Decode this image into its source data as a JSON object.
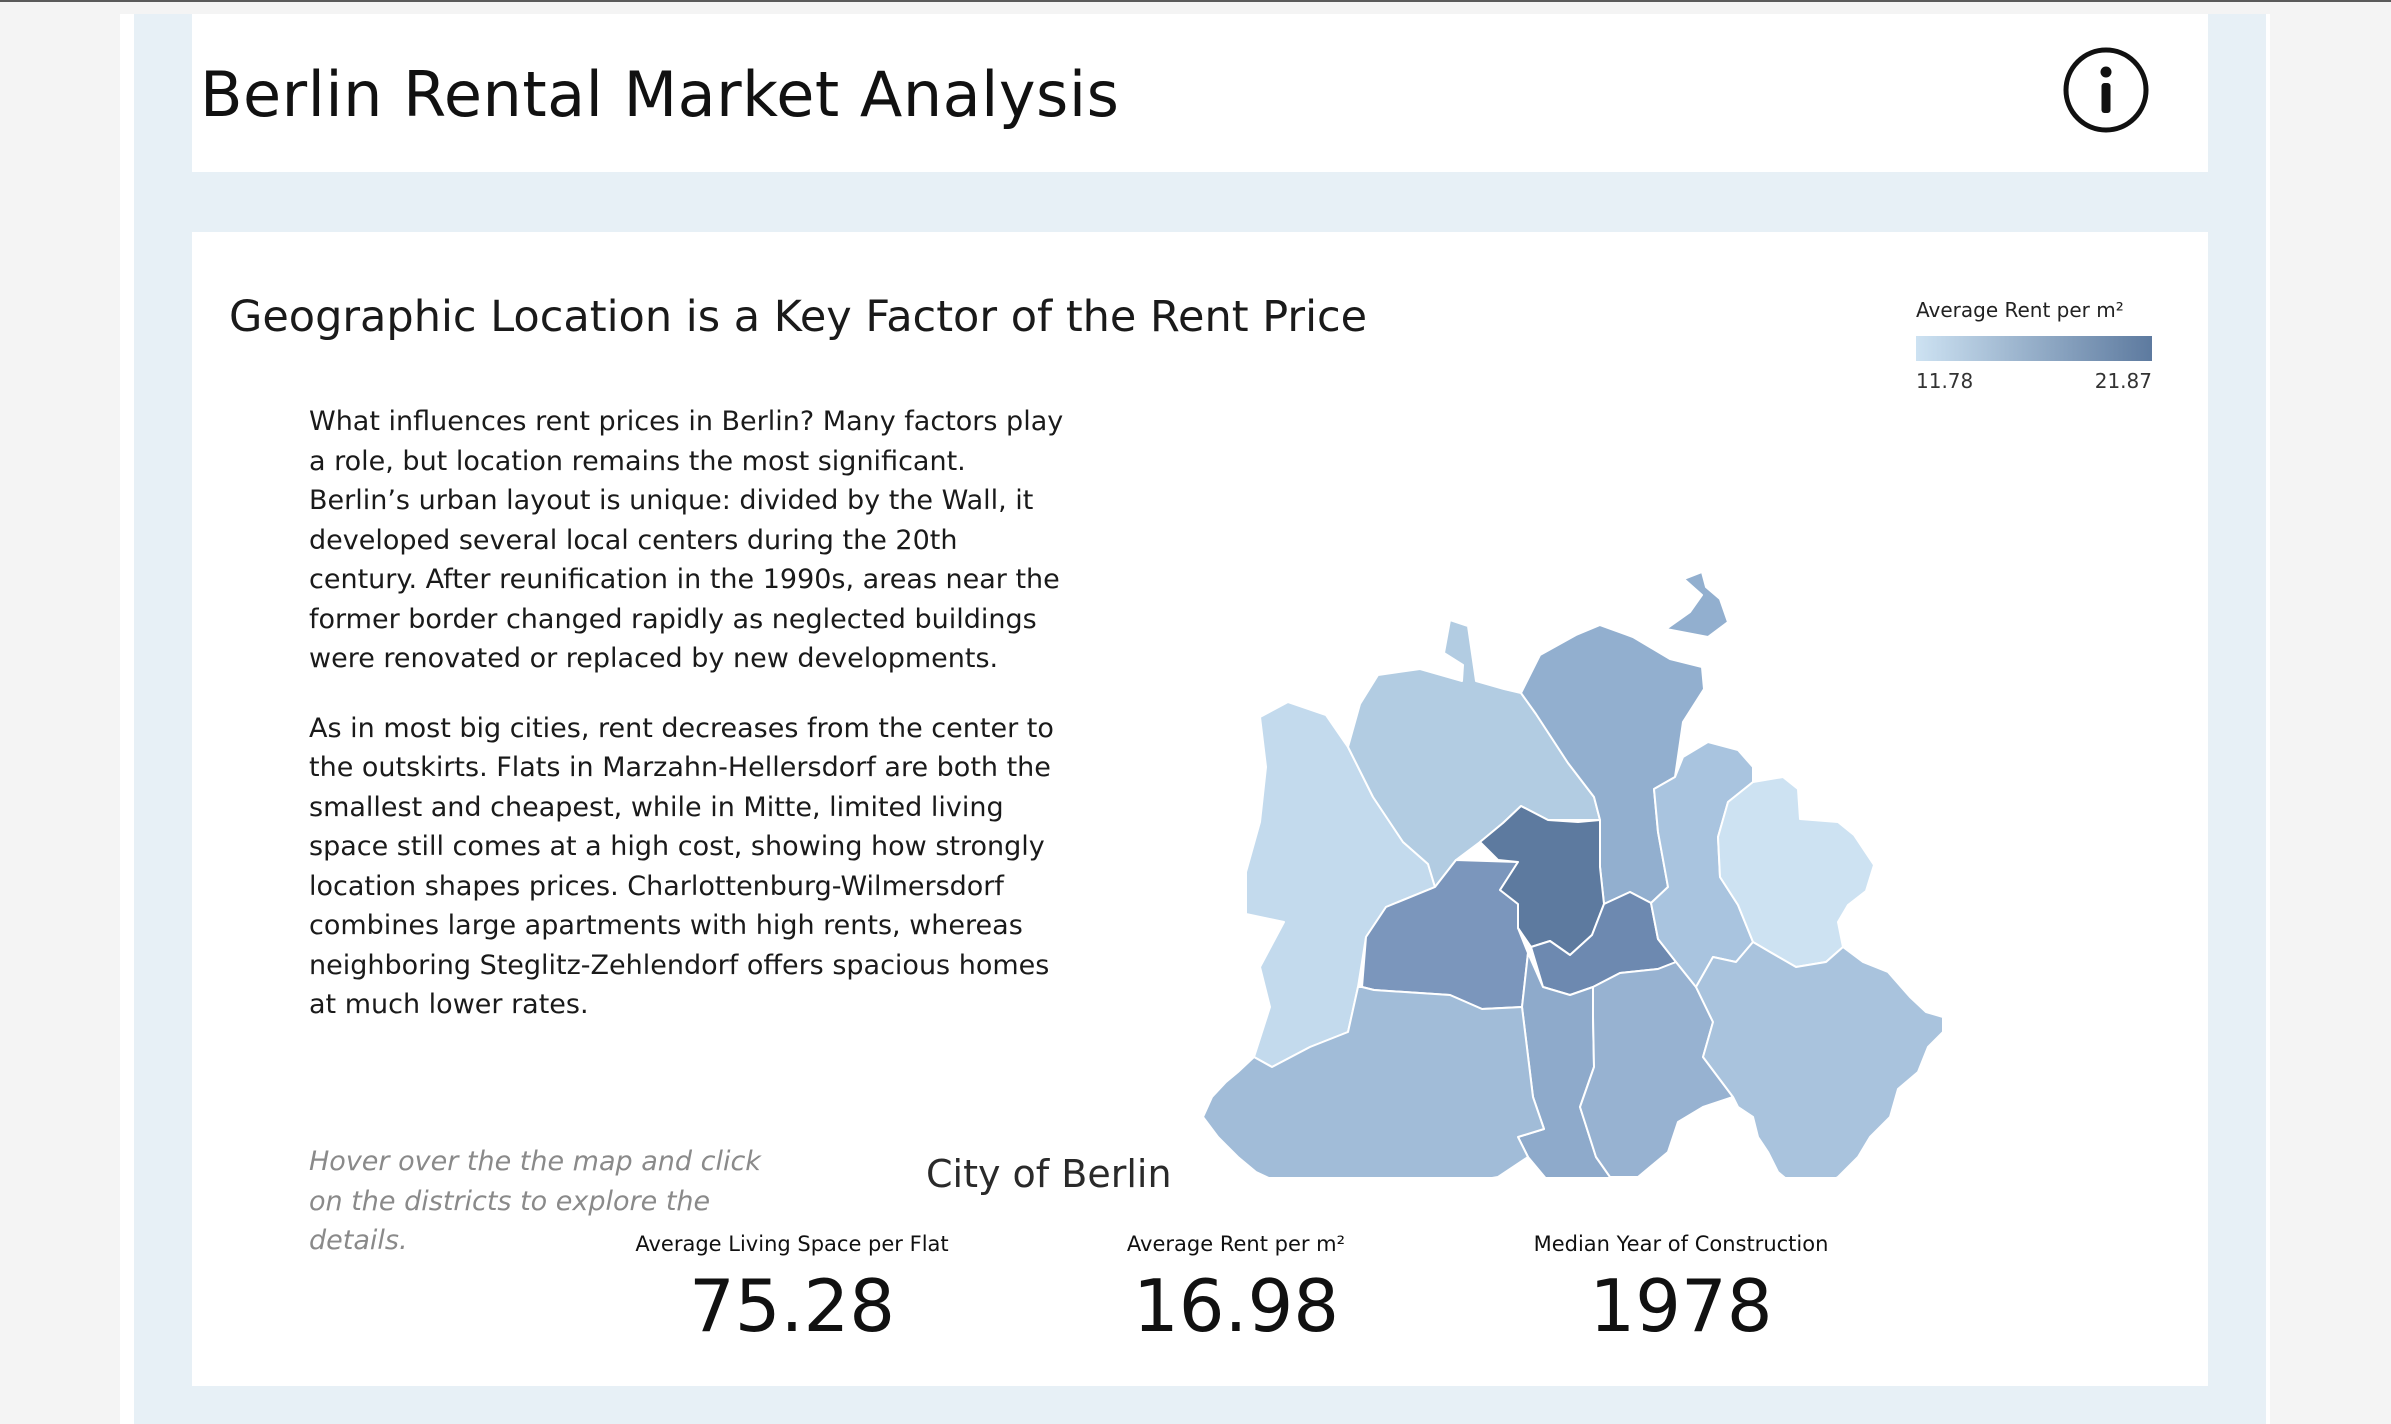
{
  "header": {
    "title": "Berlin Rental Market Analysis",
    "info_icon": "info-circle-icon"
  },
  "section": {
    "title": "Geographic Location is a Key Factor of the Rent Price",
    "paragraphs": [
      "What influences rent prices in Berlin? Many factors play a role, but location remains the most significant. Berlin’s urban layout is unique: divided by the Wall, it developed several local centers during the 20th century. After reunification in the 1990s, areas near the former border changed rapidly as neglected buildings were renovated or replaced by new developments.",
      "As in most big cities, rent decreases from the center to the outskirts. Flats in Marzahn-Hellersdorf are both the smallest and cheapest, while in Mitte, limited living space still comes at a high cost, showing how strongly location shapes prices. Charlottenburg-Wilmersdorf combines large apartments with high rents, whereas neighboring Steglitz-Zehlendorf offers spacious homes at much lower rates."
    ],
    "hint": "Hover over the the map and click on the districts to explore the details."
  },
  "legend": {
    "title": "Average Rent per m²",
    "min": "11.78",
    "max": "21.87",
    "color_min": "#cde2f2",
    "color_max": "#5d7a9f"
  },
  "map": {
    "colors": {
      "reinickendorf": "#b2cce2",
      "pankow": "#92afcf",
      "spandau": "#c3daed",
      "charlottenburg_wilmersdorf": "#7b96bc",
      "mitte": "#5d7a9f",
      "friedrichshain_kreuzberg": "#6d89b0",
      "tempelhof_schoeneberg": "#8eaacb",
      "neukoelln": "#97b2d1",
      "steglitz_zehlendorf": "#a1bcd8",
      "lichtenberg": "#a9c4df",
      "marzahn_hellersdorf": "#cde2f2",
      "treptow_koepenick": "#a9c3dd"
    }
  },
  "summary": {
    "region": "City of Berlin",
    "kpis": [
      {
        "label": "Average Living Space per Flat",
        "value": "75.28"
      },
      {
        "label": "Average Rent per m²",
        "value": "16.98"
      },
      {
        "label": "Median Year of Construction",
        "value": "1978"
      }
    ]
  }
}
